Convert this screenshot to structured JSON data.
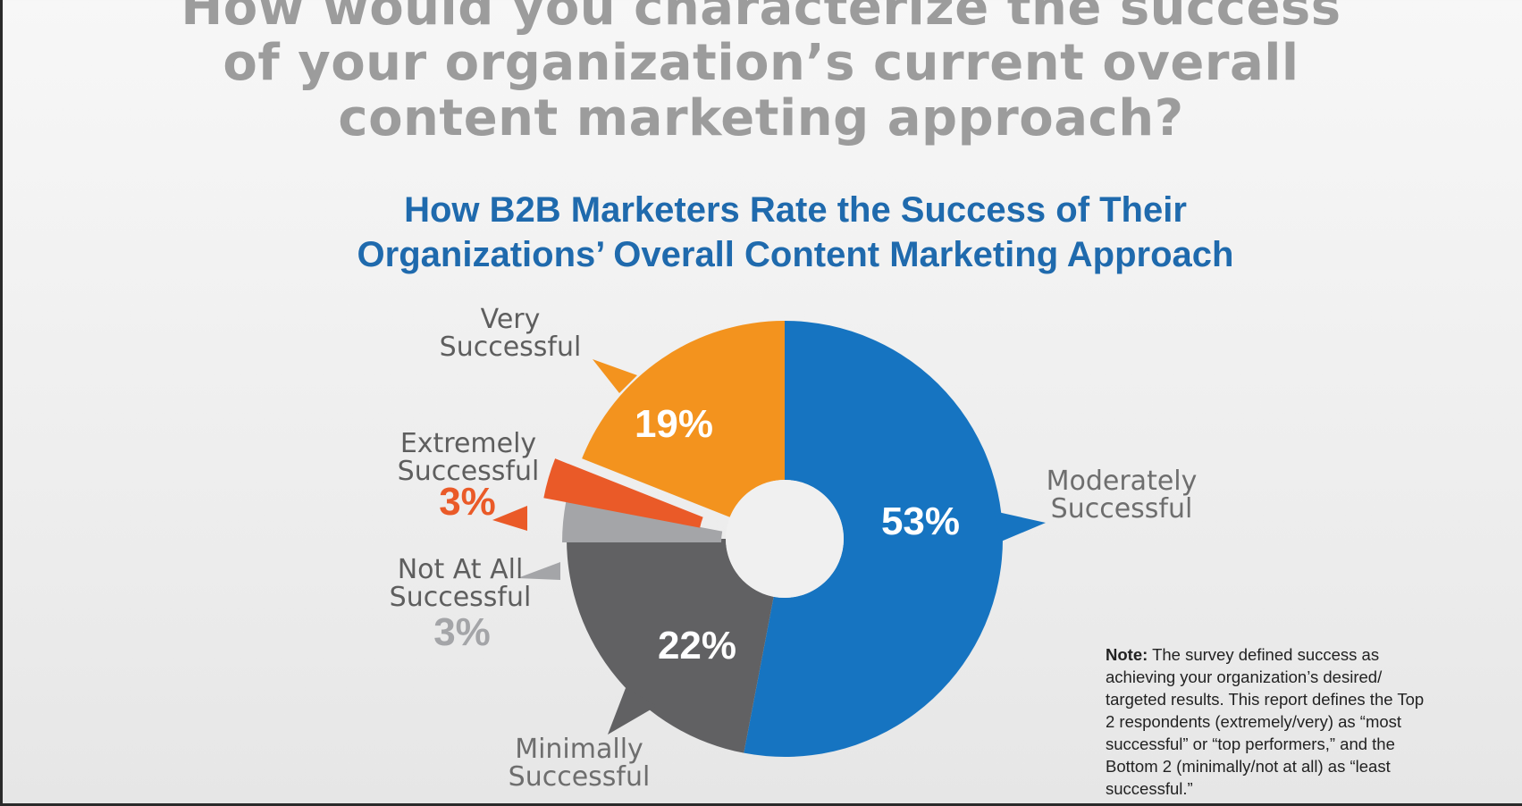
{
  "question": [
    "How would you characterize the success",
    "of your organization’s current overall",
    "content marketing approach?"
  ],
  "chart_title": [
    "How B2B Marketers Rate the Success of Their",
    "Organizations’ Overall Content Marketing Approach"
  ],
  "note": {
    "label": "Note:",
    "text": " The survey defined success as achieving your organization’s desired/ targeted results. This report defines the Top 2 respondents (extremely/very) as “most successful” or “top performers,” and the Bottom 2 (minimally/not at all) as “least successful.”"
  },
  "chart_data": {
    "type": "pie",
    "donut": true,
    "slices": [
      {
        "name": "Moderately Successful",
        "label_lines": [
          "Moderately",
          "Successful"
        ],
        "value": 53,
        "value_label": "53%",
        "color": "#1674c1"
      },
      {
        "name": "Minimally Successful",
        "label_lines": [
          "Minimally",
          "Successful"
        ],
        "value": 22,
        "value_label": "22%",
        "color": "#616163"
      },
      {
        "name": "Not At All Successful",
        "label_lines": [
          "Not At All",
          "Successful"
        ],
        "value": 3,
        "value_label": "3%",
        "color": "#a4a5a8"
      },
      {
        "name": "Extremely Successful",
        "label_lines": [
          "Extremely",
          "Successful"
        ],
        "value": 3,
        "value_label": "3%",
        "color": "#ea5a28"
      },
      {
        "name": "Very Successful",
        "label_lines": [
          "Very",
          "Successful"
        ],
        "value": 19,
        "value_label": "19%",
        "color": "#f3931e"
      }
    ]
  }
}
